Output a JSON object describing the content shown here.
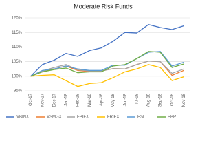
{
  "chart_data": {
    "type": "line",
    "title": "Moderate Risk Funds",
    "categories": [
      "Oct-17",
      "Nov-17",
      "Dec-17",
      "Jan-18",
      "Feb-18",
      "Mar-18",
      "Apr-18",
      "May-18",
      "Jun-18",
      "Jul-18",
      "Aug-18",
      "Sep-18",
      "Oct-18",
      "Nov-18"
    ],
    "series": [
      {
        "name": "VBINX",
        "color": "#4472c4",
        "values": [
          100,
          104,
          105.5,
          107.8,
          106.8,
          108.8,
          109.7,
          112,
          115,
          114.8,
          117.7,
          116.7,
          116,
          117.3
        ]
      },
      {
        "name": "VSMGX",
        "color": "#ed7d31",
        "values": [
          100,
          101.5,
          102.5,
          103.5,
          102,
          101.6,
          101.8,
          102.6,
          102.5,
          104,
          105.2,
          105,
          100.3,
          102
        ]
      },
      {
        "name": "FPIFX",
        "color": "#a5a5a5",
        "values": [
          100,
          101.8,
          103,
          104,
          102.2,
          101.8,
          101.8,
          102.6,
          102.5,
          104,
          105.2,
          105,
          101,
          102.5
        ]
      },
      {
        "name": "FRIFX",
        "color": "#ffc000",
        "values": [
          100,
          100.3,
          100.5,
          98.5,
          96.5,
          97.5,
          97.8,
          99.5,
          101.5,
          102.5,
          104,
          103,
          98.5,
          99.8
        ]
      },
      {
        "name": "PSL",
        "color": "#5b9bd5",
        "values": [
          100,
          102,
          102.5,
          103.5,
          102.5,
          102,
          102,
          103.8,
          103.8,
          106,
          108.2,
          108.5,
          103.5,
          104.8
        ]
      },
      {
        "name": "PBP",
        "color": "#70ad47",
        "values": [
          100,
          101.5,
          102.3,
          102.8,
          101.2,
          101.5,
          101.5,
          103.5,
          104,
          106,
          108.5,
          108.2,
          103,
          104.2
        ]
      }
    ],
    "ylim": [
      95,
      120
    ],
    "yticks": [
      {
        "value": 95,
        "label": "95%"
      },
      {
        "value": 100,
        "label": "100%"
      },
      {
        "value": 105,
        "label": "105%"
      },
      {
        "value": 110,
        "label": "110%"
      },
      {
        "value": 115,
        "label": "115%"
      },
      {
        "value": 120,
        "label": "120%"
      }
    ],
    "grid": true
  }
}
